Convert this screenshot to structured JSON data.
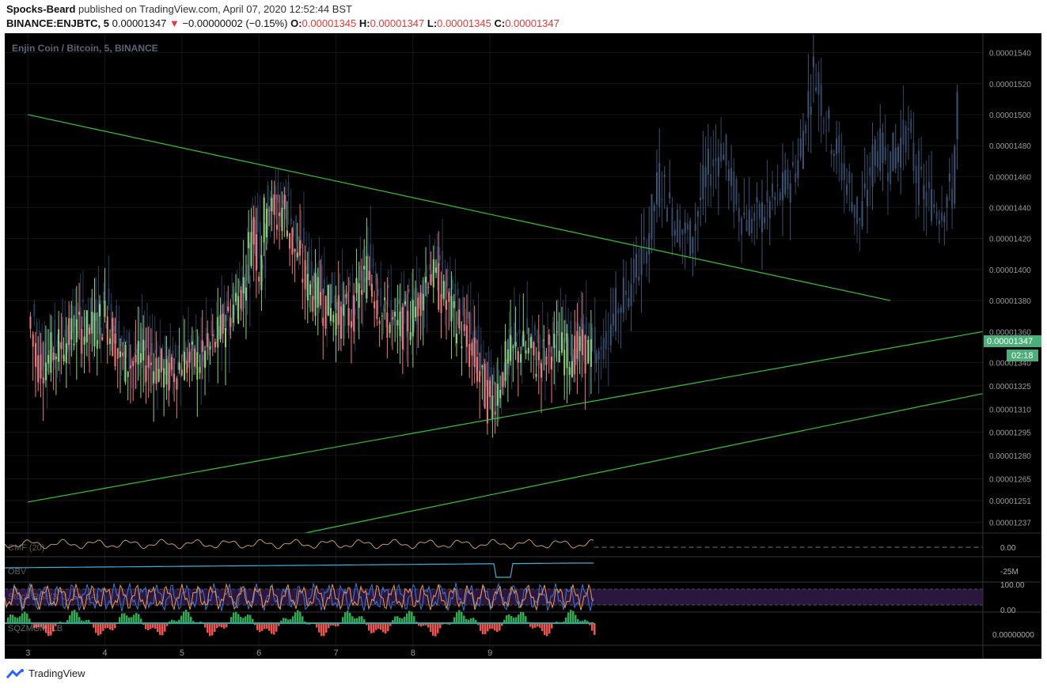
{
  "header": {
    "author": "Spocks-Beard",
    "published_text": "published on TradingView.com, April 07, 2020 12:52:44 BST",
    "symbol": "BINANCE:ENJBTC, 5",
    "price": "0.00001347",
    "change_arrow": "▼",
    "change": "−0.00000002 (−0.15%)",
    "o_label": "O:",
    "o_value": "0.00001345",
    "h_label": "H:",
    "h_value": "0.00001347",
    "l_label": "L:",
    "l_value": "0.00001345",
    "c_label": "C:",
    "c_value": "0.00001347"
  },
  "chart": {
    "legend_title": "Enjin Coin / Bitcoin, 5, BINANCE",
    "last_price_label": "0.00001347",
    "countdown": "02:18"
  },
  "panes": {
    "cmf": {
      "label": "CMF (20)",
      "value": "0.00"
    },
    "obv": {
      "label": "OBV",
      "value": "-25M"
    },
    "stoch": {
      "label": "Stoch RSI (3, 3, 14, 14)",
      "upper": "100.00",
      "lower": "0.00"
    },
    "squeeze": {
      "label": "SQZMOM_LB",
      "value": "0.00000000"
    }
  },
  "footer": {
    "brand": "TradingView"
  },
  "colors": {
    "background": "#000000",
    "trendline": "#35c435",
    "candle_bull": "#8fd17a",
    "candle_bear": "#ef7b7b",
    "ghost": "#3e5575",
    "price_label": "#4caf7a"
  },
  "chart_data": {
    "type": "candlestick",
    "title": "Enjin Coin / Bitcoin, 5, BINANCE",
    "x_tick_labels": [
      "3",
      "4",
      "5",
      "6",
      "7",
      "8",
      "9"
    ],
    "y_tick_labels": [
      "0.00001540",
      "0.00001520",
      "0.00001500",
      "0.00001480",
      "0.00001460",
      "0.00001440",
      "0.00001420",
      "0.00001400",
      "0.00001380",
      "0.00001360",
      "0.00001340",
      "0.00001325",
      "0.00001310",
      "0.00001295",
      "0.00001280",
      "0.00001265",
      "0.00001251",
      "0.00001237"
    ],
    "price_series": {
      "name": "ENJBTC",
      "x": [
        0,
        0.1,
        0.2,
        0.4,
        0.6,
        0.8,
        1.0,
        1.2,
        1.4,
        1.6,
        1.8,
        2.0,
        2.2,
        2.4,
        2.6,
        2.8,
        2.9,
        3.0,
        3.1,
        3.2,
        3.3,
        3.4,
        3.6,
        3.8,
        4.0,
        4.2,
        4.4,
        4.6,
        4.8,
        5.0,
        5.2,
        5.4,
        5.6,
        5.8,
        6.0,
        6.2,
        6.4,
        6.6,
        6.8,
        7.0,
        7.2,
        7.35
      ],
      "y": [
        1.37e-05,
        1.34e-05,
        1.34e-05,
        1.35e-05,
        1.36e-05,
        1.36e-05,
        1.37e-05,
        1.34e-05,
        1.34e-05,
        1.34e-05,
        1.33e-05,
        1.34e-05,
        1.34e-05,
        1.35e-05,
        1.37e-05,
        1.39e-05,
        1.43e-05,
        1.4e-05,
        1.45e-05,
        1.43e-05,
        1.44e-05,
        1.42e-05,
        1.39e-05,
        1.38e-05,
        1.37e-05,
        1.37e-05,
        1.4e-05,
        1.37e-05,
        1.36e-05,
        1.37e-05,
        1.4e-05,
        1.38e-05,
        1.36e-05,
        1.34e-05,
        1.31e-05,
        1.34e-05,
        1.35e-05,
        1.34e-05,
        1.35e-05,
        1.345e-05,
        1.347e-05,
        1.347e-05
      ]
    },
    "projected_series": {
      "name": "",
      "x": [
        7.35,
        7.6,
        7.8,
        8.0,
        8.2,
        8.4,
        8.6,
        8.8,
        9.0,
        9.2,
        9.4,
        9.6,
        9.8,
        10.0,
        10.2,
        10.4,
        10.6,
        10.8,
        11.0,
        11.2,
        11.4,
        11.6,
        11.8,
        12.0,
        12.1
      ],
      "y": [
        1.34e-05,
        1.37e-05,
        1.39e-05,
        1.41e-05,
        1.46e-05,
        1.43e-05,
        1.42e-05,
        1.46e-05,
        1.48e-05,
        1.44e-05,
        1.43e-05,
        1.44e-05,
        1.45e-05,
        1.47e-05,
        1.53e-05,
        1.49e-05,
        1.46e-05,
        1.43e-05,
        1.48e-05,
        1.47e-05,
        1.49e-05,
        1.45e-05,
        1.44e-05,
        1.45e-05,
        1.54e-05
      ]
    },
    "trendlines": [
      {
        "x": [
          0,
          11.2
        ],
        "y": [
          1.5e-05,
          1.38e-05
        ]
      },
      {
        "x": [
          0,
          12.4
        ],
        "y": [
          1.25e-05,
          1.36e-05
        ]
      },
      {
        "x": [
          3.6,
          12.4
        ],
        "y": [
          1.23e-05,
          1.32e-05
        ]
      }
    ]
  }
}
